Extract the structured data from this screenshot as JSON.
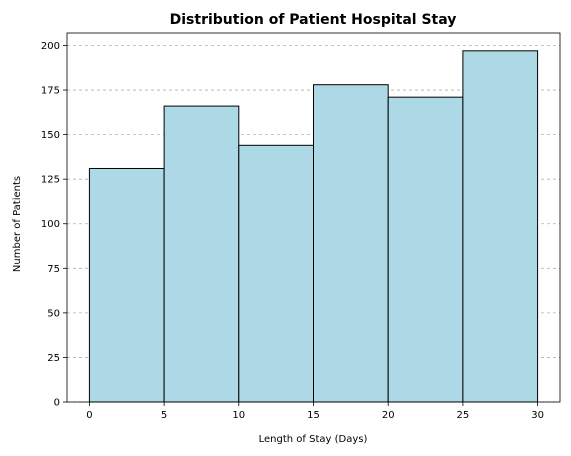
{
  "chart_data": {
    "type": "bar",
    "title": "Distribution of Patient Hospital Stay",
    "xlabel": "Length of Stay (Days)",
    "ylabel": "Number of Patients",
    "bin_edges": [
      0,
      5,
      10,
      15,
      20,
      25,
      30
    ],
    "values": [
      131,
      166,
      144,
      178,
      171,
      197
    ],
    "xlim": [
      -1.5,
      31.5
    ],
    "ylim": [
      0,
      207
    ],
    "x_ticks": [
      0,
      5,
      10,
      15,
      20,
      25,
      30
    ],
    "y_ticks": [
      0,
      25,
      50,
      75,
      100,
      125,
      150,
      175,
      200
    ],
    "grid": "y-dashed",
    "bar_color": "#add8e6",
    "edge_color": "#000000",
    "grid_color": "#b0b0b0"
  }
}
